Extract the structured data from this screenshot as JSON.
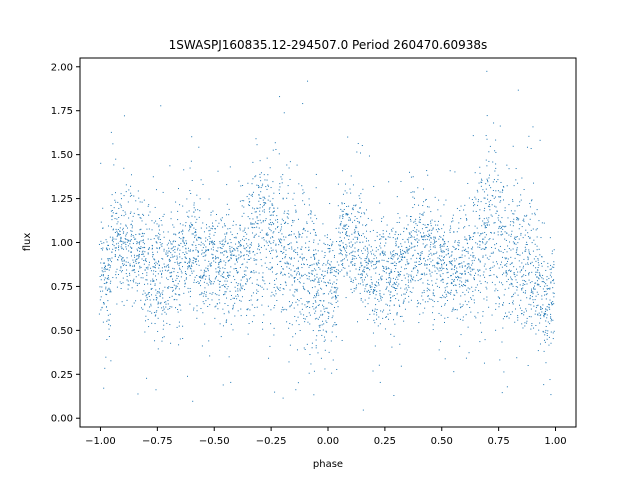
{
  "chart_data": {
    "type": "scatter",
    "title": "1SWASPJ160835.12-294507.0 Period 260470.60938s",
    "xlabel": "phase",
    "ylabel": "flux",
    "xlim": [
      -1.09,
      1.09
    ],
    "ylim": [
      -0.05,
      2.05
    ],
    "grid": false,
    "legend": "none",
    "marker_color": "#1f77b4",
    "x_ticks": [
      -1.0,
      -0.75,
      -0.5,
      -0.25,
      0.0,
      0.25,
      0.5,
      0.75,
      1.0
    ],
    "x_tick_labels": [
      "−1.00",
      "−0.75",
      "−0.50",
      "−0.25",
      "0.00",
      "0.25",
      "0.50",
      "0.75",
      "1.00"
    ],
    "y_ticks": [
      0.0,
      0.25,
      0.5,
      0.75,
      1.0,
      1.25,
      1.5,
      1.75,
      2.0
    ],
    "y_tick_labels": [
      "0.00",
      "0.25",
      "0.50",
      "0.75",
      "1.00",
      "1.25",
      "1.50",
      "1.75",
      "2.00"
    ],
    "series": [
      {
        "description": "folded light curve, two cycles (phase -1 to 1), phase-binned flux envelope",
        "x": [
          -0.98,
          -0.93,
          -0.88,
          -0.83,
          -0.78,
          -0.73,
          -0.68,
          -0.63,
          -0.58,
          -0.53,
          -0.48,
          -0.43,
          -0.38,
          -0.33,
          -0.28,
          -0.23,
          -0.18,
          -0.13,
          -0.08,
          -0.03,
          0.02,
          0.07,
          0.12,
          0.17,
          0.22,
          0.27,
          0.32,
          0.37,
          0.42,
          0.47,
          0.52,
          0.57,
          0.62,
          0.67,
          0.72,
          0.77,
          0.82,
          0.87,
          0.92,
          0.97
        ],
        "y_mean": [
          0.8,
          1.05,
          1.0,
          0.9,
          0.85,
          0.82,
          0.85,
          0.95,
          0.95,
          0.92,
          0.88,
          0.85,
          0.9,
          1.0,
          1.1,
          1.0,
          0.95,
          0.88,
          0.82,
          0.7,
          0.8,
          1.05,
          1.0,
          0.9,
          0.85,
          0.82,
          0.85,
          0.95,
          0.95,
          0.92,
          0.88,
          0.85,
          0.9,
          1.0,
          1.1,
          1.0,
          0.95,
          0.88,
          0.82,
          0.7
        ],
        "y_spread": [
          0.35,
          0.3,
          0.35,
          0.35,
          0.4,
          0.35,
          0.3,
          0.35,
          0.35,
          0.35,
          0.35,
          0.35,
          0.35,
          0.45,
          0.5,
          0.55,
          0.5,
          0.45,
          0.45,
          0.35,
          0.35,
          0.3,
          0.35,
          0.35,
          0.4,
          0.35,
          0.3,
          0.35,
          0.35,
          0.35,
          0.35,
          0.35,
          0.35,
          0.45,
          0.5,
          0.55,
          0.5,
          0.45,
          0.45,
          0.35
        ]
      }
    ]
  }
}
